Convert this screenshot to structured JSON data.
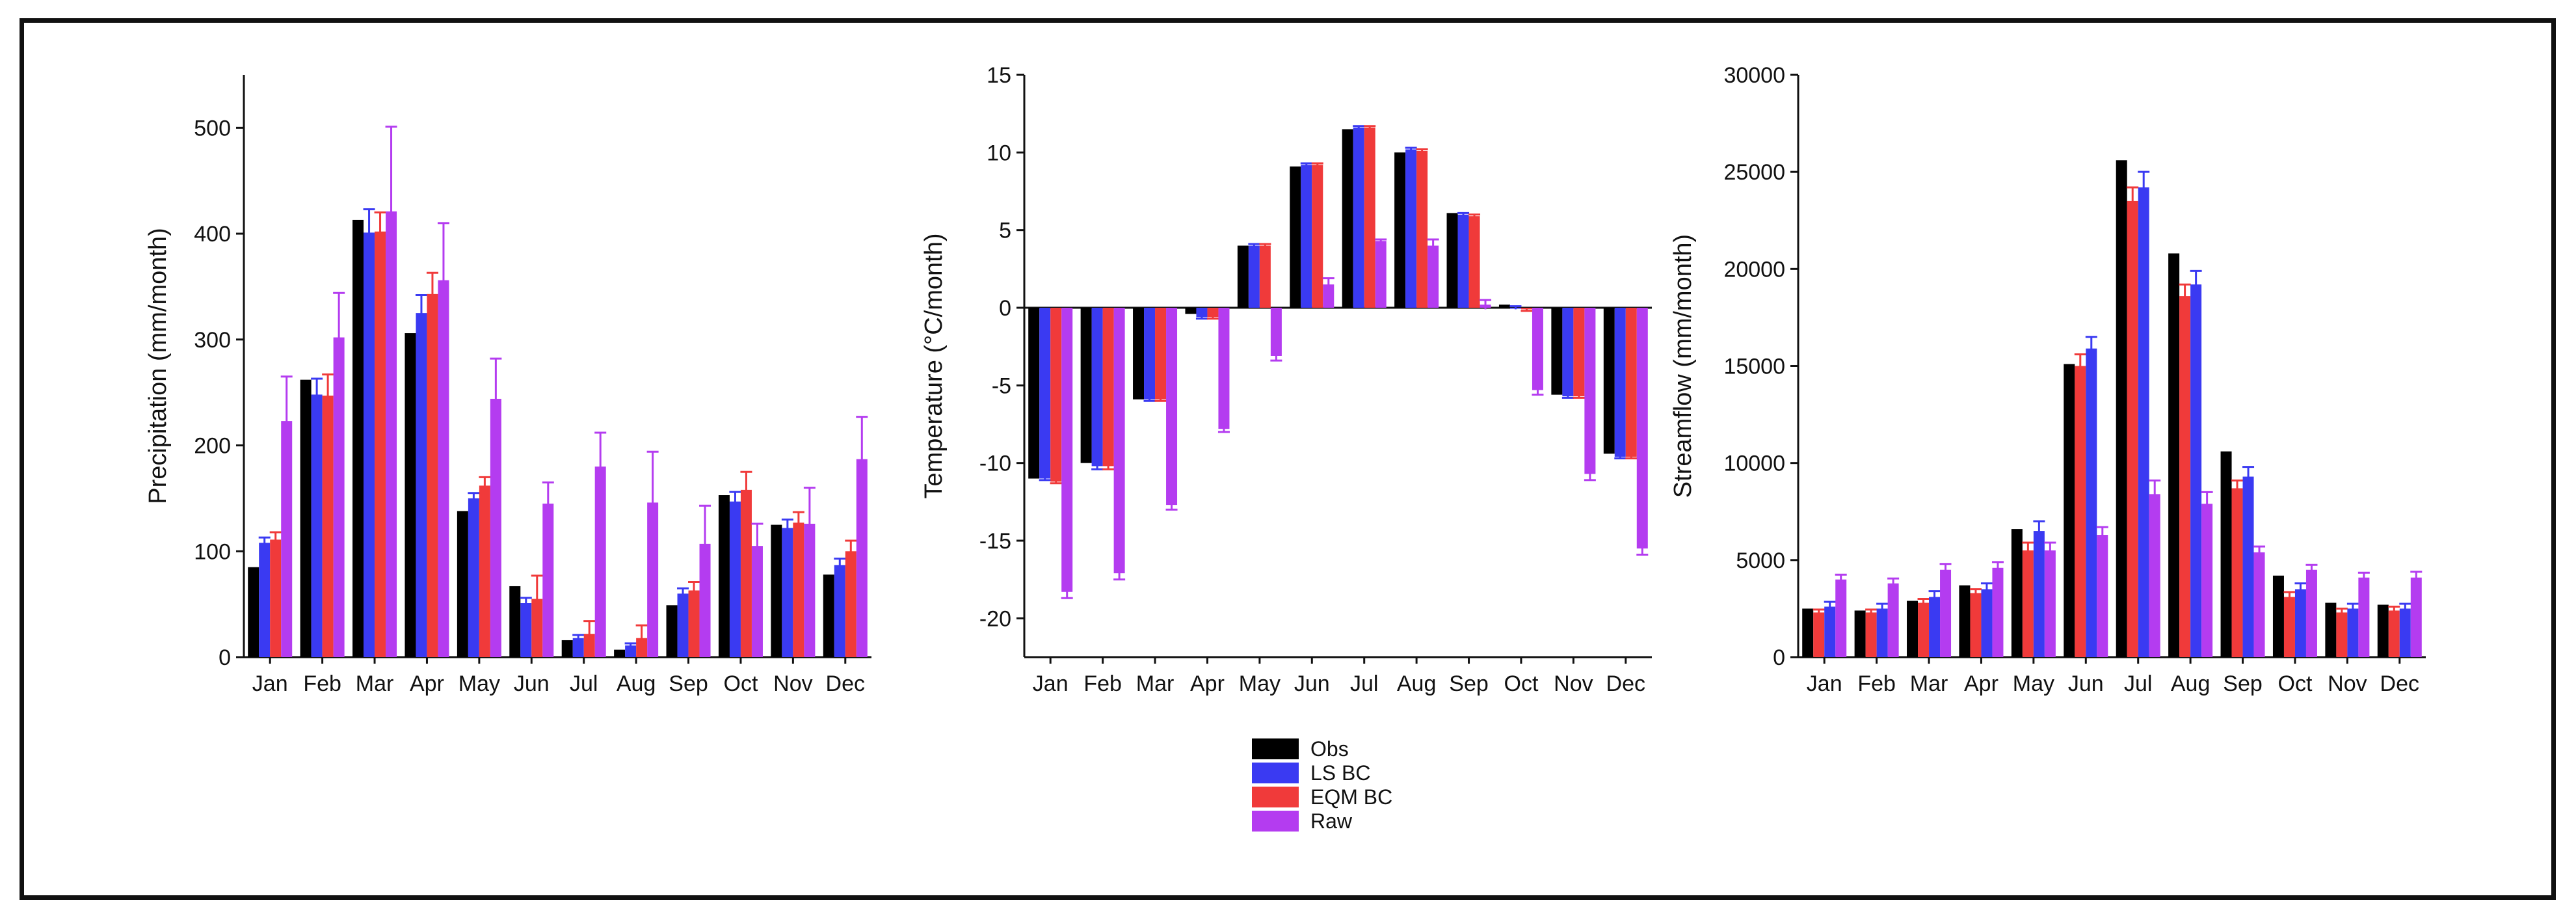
{
  "colors": {
    "Obs": "#000000",
    "LS BC": "#3a3af2",
    "EQM BC": "#f03a3a",
    "Raw": "#b43cf0"
  },
  "legend": {
    "placement": "bottom-center",
    "entries": [
      "Obs",
      "LS BC",
      "EQM BC",
      "Raw"
    ]
  },
  "chart_data": [
    {
      "type": "bar",
      "title": "",
      "xlabel": "",
      "ylabel": "Precipitation (mm/month)",
      "ylim": [
        0,
        550
      ],
      "yticks": [
        0,
        100,
        200,
        300,
        400,
        500
      ],
      "categories": [
        "Jan",
        "Feb",
        "Mar",
        "Apr",
        "May",
        "Jun",
        "Jul",
        "Aug",
        "Sep",
        "Oct",
        "Nov",
        "Dec"
      ],
      "series": [
        {
          "name": "Obs",
          "values": [
            85,
            262,
            413,
            306,
            138,
            67,
            16,
            7,
            49,
            153,
            125,
            78
          ],
          "errors": [
            0,
            0,
            0,
            0,
            0,
            0,
            0,
            0,
            0,
            0,
            0,
            0
          ]
        },
        {
          "name": "LS BC",
          "values": [
            108,
            248,
            401,
            325,
            150,
            51,
            18,
            11,
            60,
            147,
            122,
            87
          ],
          "errors": [
            5,
            15,
            22,
            17,
            5,
            5,
            3,
            2,
            5,
            9,
            8,
            6
          ]
        },
        {
          "name": "EQM BC",
          "values": [
            111,
            247,
            402,
            343,
            162,
            55,
            22,
            18,
            63,
            158,
            127,
            100
          ],
          "errors": [
            7,
            20,
            18,
            20,
            8,
            22,
            12,
            12,
            8,
            17,
            10,
            10
          ]
        },
        {
          "name": "Raw",
          "values": [
            223,
            302,
            421,
            356,
            244,
            145,
            180,
            146,
            107,
            105,
            126,
            187
          ],
          "errors": [
            42,
            42,
            80,
            54,
            38,
            20,
            32,
            48,
            36,
            21,
            34,
            40
          ]
        }
      ]
    },
    {
      "type": "bar",
      "title": "",
      "xlabel": "",
      "ylabel": "Temperature (°C/month)",
      "ylim": [
        -22.5,
        15
      ],
      "yticks": [
        -20,
        -15,
        -10,
        -5,
        0,
        5,
        10,
        15
      ],
      "categories": [
        "Jan",
        "Feb",
        "Mar",
        "Apr",
        "May",
        "Jun",
        "Jul",
        "Aug",
        "Sep",
        "Oct",
        "Nov",
        "Dec"
      ],
      "series": [
        {
          "name": "Obs",
          "values": [
            -11.0,
            -10.0,
            -5.9,
            -0.4,
            4.0,
            9.1,
            11.5,
            10.0,
            6.1,
            0.2,
            -5.6,
            -9.4
          ],
          "errors": [
            0,
            0,
            0,
            0,
            0,
            0,
            0,
            0,
            0,
            0,
            0,
            0
          ]
        },
        {
          "name": "LS BC",
          "values": [
            -11.0,
            -10.2,
            -5.9,
            -0.6,
            4.0,
            9.2,
            11.6,
            10.2,
            6.0,
            0.0,
            -5.7,
            -9.6
          ],
          "errors": [
            0.1,
            0.2,
            0.1,
            0.1,
            0.1,
            0.1,
            0.1,
            0.1,
            0.1,
            0.1,
            0.1,
            0.1
          ]
        },
        {
          "name": "EQM BC",
          "values": [
            -11.2,
            -10.2,
            -5.9,
            -0.6,
            4.0,
            9.2,
            11.6,
            10.1,
            5.9,
            -0.1,
            -5.7,
            -9.6
          ],
          "errors": [
            0.1,
            0.2,
            0.1,
            0.1,
            0.1,
            0.1,
            0.1,
            0.1,
            0.1,
            0.1,
            0.1,
            0.1
          ]
        },
        {
          "name": "Raw",
          "values": [
            -18.3,
            -17.1,
            -12.7,
            -7.8,
            -3.1,
            1.5,
            4.3,
            4.0,
            0.2,
            -5.3,
            -10.7,
            -15.5
          ],
          "errors": [
            0.4,
            0.4,
            0.3,
            0.2,
            0.3,
            0.4,
            0.1,
            0.4,
            0.3,
            0.3,
            0.4,
            0.4
          ]
        }
      ]
    },
    {
      "type": "bar",
      "title": "",
      "xlabel": "",
      "ylabel": "Streamflow (mm/month)",
      "ylim": [
        0,
        30000
      ],
      "yticks": [
        0,
        5000,
        10000,
        15000,
        20000,
        25000,
        30000
      ],
      "categories": [
        "Jan",
        "Feb",
        "Mar",
        "Apr",
        "May",
        "Jun",
        "Jul",
        "Aug",
        "Sep",
        "Oct",
        "Nov",
        "Dec"
      ],
      "series": [
        {
          "name": "Obs",
          "values": [
            2500,
            2400,
            2900,
            3700,
            6600,
            15100,
            25600,
            20800,
            10600,
            4200,
            2800,
            2700
          ],
          "errors": [
            0,
            0,
            0,
            0,
            0,
            0,
            0,
            0,
            0,
            0,
            0,
            0
          ]
        },
        {
          "name": "EQM BC",
          "values": [
            2300,
            2300,
            2800,
            3300,
            5500,
            15000,
            23500,
            18600,
            8700,
            3100,
            2300,
            2400
          ],
          "errors": [
            150,
            150,
            200,
            200,
            400,
            600,
            700,
            600,
            400,
            250,
            200,
            200
          ]
        },
        {
          "name": "LS BC",
          "values": [
            2600,
            2500,
            3100,
            3500,
            6500,
            15900,
            24200,
            19200,
            9300,
            3500,
            2500,
            2500
          ],
          "errors": [
            250,
            250,
            300,
            300,
            500,
            600,
            800,
            700,
            500,
            300,
            250,
            250
          ]
        },
        {
          "name": "Raw",
          "values": [
            4000,
            3800,
            4500,
            4600,
            5500,
            6300,
            8400,
            7900,
            5400,
            4500,
            4100,
            4100
          ],
          "errors": [
            250,
            250,
            300,
            300,
            400,
            400,
            700,
            600,
            300,
            250,
            250,
            300
          ]
        }
      ]
    }
  ]
}
